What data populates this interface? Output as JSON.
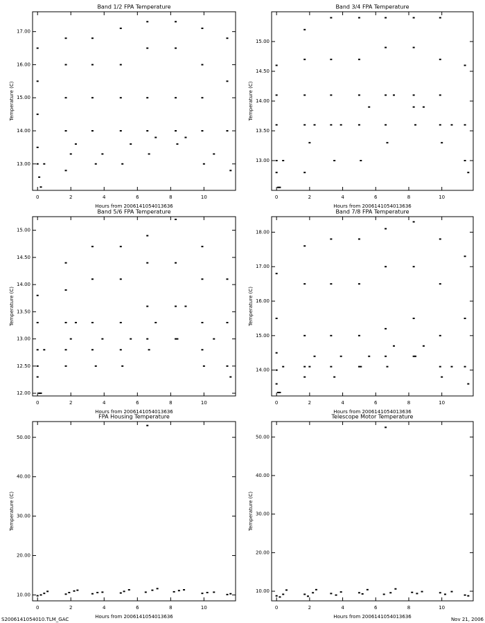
{
  "chart_data": [
    {
      "type": "scatter",
      "title": "Band 1/2 FPA Temperature",
      "xlabel": "Hours from 2006141054013636",
      "ylabel": "Temperature (C)",
      "x": [
        0,
        0,
        0,
        0,
        0,
        0.1,
        0.2,
        0.4,
        1.7,
        1.7,
        1.7,
        1.7,
        1.7,
        2.0,
        2.3,
        3.3,
        3.3,
        3.3,
        3.3,
        3.5,
        3.9,
        5.0,
        5.0,
        5.0,
        5.0,
        5.1,
        5.6,
        6.6,
        6.6,
        6.6,
        6.6,
        6.7,
        7.1,
        8.3,
        8.3,
        8.3,
        8.3,
        8.4,
        8.9,
        9.9,
        9.9,
        9.9,
        9.9,
        10.0,
        10.6,
        11.4,
        11.4,
        11.4,
        11.6
      ],
      "y": [
        16.5,
        15.5,
        14.5,
        13.5,
        13.0,
        12.6,
        12.3,
        13.0,
        16.8,
        16.0,
        15.0,
        14.0,
        12.8,
        13.3,
        13.6,
        16.8,
        16.0,
        15.0,
        14.0,
        13.0,
        13.3,
        17.1,
        16.0,
        15.0,
        14.0,
        13.0,
        13.6,
        17.3,
        16.5,
        15.0,
        14.0,
        13.3,
        13.8,
        17.3,
        16.5,
        15.0,
        14.0,
        13.6,
        13.8,
        17.1,
        16.0,
        15.0,
        14.0,
        13.0,
        13.3,
        16.8,
        15.5,
        14.0,
        12.8
      ],
      "xlim": [
        -0.3,
        11.9
      ],
      "xticks": [
        0,
        2,
        4,
        6,
        8,
        10
      ],
      "ylim": [
        12.2,
        17.6
      ],
      "yticks": [
        {
          "value": 13,
          "label": "13.00"
        },
        {
          "value": 14,
          "label": "14.00"
        },
        {
          "value": 15,
          "label": "15.00"
        },
        {
          "value": 16,
          "label": "16.00"
        },
        {
          "value": 17,
          "label": "17.00"
        }
      ]
    },
    {
      "type": "scatter",
      "title": "Band 3/4 FPA Temperature",
      "xlabel": "Hours from 2006141054013636",
      "ylabel": "Temperature (C)",
      "x": [
        0,
        0,
        0,
        0,
        0,
        0.1,
        0.2,
        0.4,
        1.7,
        1.7,
        1.7,
        1.7,
        1.7,
        2.0,
        2.3,
        3.3,
        3.3,
        3.3,
        3.3,
        3.5,
        3.9,
        5.0,
        5.0,
        5.0,
        5.0,
        5.1,
        5.6,
        6.6,
        6.6,
        6.6,
        6.6,
        6.7,
        7.1,
        8.3,
        8.3,
        8.3,
        8.3,
        8.4,
        8.9,
        9.9,
        9.9,
        9.9,
        9.9,
        10.0,
        10.6,
        11.4,
        11.4,
        11.4,
        11.6
      ],
      "y": [
        14.6,
        14.1,
        13.6,
        13.0,
        12.8,
        12.55,
        12.55,
        13.0,
        15.2,
        14.7,
        14.1,
        13.6,
        12.8,
        13.3,
        13.6,
        15.4,
        14.7,
        14.1,
        13.6,
        13.0,
        13.6,
        15.4,
        14.7,
        14.1,
        13.6,
        13.0,
        13.9,
        15.4,
        14.9,
        14.1,
        13.6,
        13.3,
        14.1,
        15.4,
        14.9,
        14.1,
        13.9,
        13.6,
        13.9,
        15.4,
        14.7,
        14.1,
        13.6,
        13.3,
        13.6,
        14.6,
        13.6,
        13.0,
        12.8
      ],
      "xlim": [
        -0.3,
        11.9
      ],
      "xticks": [
        0,
        2,
        4,
        6,
        8,
        10
      ],
      "ylim": [
        12.5,
        15.5
      ],
      "yticks": [
        {
          "value": 13,
          "label": "13.00"
        },
        {
          "value": 13.5,
          "label": "13.50"
        },
        {
          "value": 14,
          "label": "14.00"
        },
        {
          "value": 14.5,
          "label": "14.50"
        },
        {
          "value": 15,
          "label": "15.00"
        }
      ]
    },
    {
      "type": "scatter",
      "title": "Band 5/6 FPA Temperature",
      "xlabel": "Hours from 2006141054013636",
      "ylabel": "Temperature (C)",
      "x": [
        0,
        0,
        0,
        0,
        0,
        0.1,
        0.2,
        0.4,
        1.7,
        1.7,
        1.7,
        1.7,
        1.7,
        2.0,
        2.3,
        3.3,
        3.3,
        3.3,
        3.3,
        3.5,
        3.9,
        5.0,
        5.0,
        5.0,
        5.0,
        5.1,
        5.6,
        6.6,
        6.6,
        6.6,
        6.6,
        6.7,
        7.1,
        8.3,
        8.3,
        8.3,
        8.3,
        8.4,
        8.9,
        9.9,
        9.9,
        9.9,
        9.9,
        10.0,
        10.6,
        11.4,
        11.4,
        11.4,
        11.6
      ],
      "y": [
        13.8,
        13.3,
        12.8,
        12.5,
        12.3,
        12.0,
        12.0,
        12.8,
        14.4,
        13.9,
        13.3,
        12.8,
        12.5,
        13.0,
        13.3,
        14.7,
        14.1,
        13.3,
        12.8,
        12.5,
        13.0,
        14.7,
        14.1,
        13.3,
        12.8,
        12.5,
        13.0,
        14.9,
        14.4,
        13.6,
        13.0,
        12.8,
        13.3,
        15.2,
        14.4,
        13.6,
        13.0,
        13.0,
        13.6,
        14.7,
        14.1,
        13.3,
        12.8,
        12.5,
        13.0,
        14.1,
        13.3,
        12.5,
        12.3
      ],
      "xlim": [
        -0.3,
        11.9
      ],
      "xticks": [
        0,
        2,
        4,
        6,
        8,
        10
      ],
      "ylim": [
        11.95,
        15.25
      ],
      "yticks": [
        {
          "value": 12,
          "label": "12.00"
        },
        {
          "value": 12.5,
          "label": "12.50"
        },
        {
          "value": 13,
          "label": "13.00"
        },
        {
          "value": 13.5,
          "label": "13.50"
        },
        {
          "value": 14,
          "label": "14.00"
        },
        {
          "value": 14.5,
          "label": "14.50"
        },
        {
          "value": 15,
          "label": "15.00"
        }
      ]
    },
    {
      "type": "scatter",
      "title": "Band 7/8 FPA Temperature",
      "xlabel": "Hours from 2006141054013636",
      "ylabel": "Temperature (C)",
      "x": [
        0,
        0,
        0,
        0,
        0,
        0.1,
        0.2,
        0.4,
        1.7,
        1.7,
        1.7,
        1.7,
        1.7,
        2.0,
        2.3,
        3.3,
        3.3,
        3.3,
        3.3,
        3.5,
        3.9,
        5.0,
        5.0,
        5.0,
        5.0,
        5.1,
        5.6,
        6.6,
        6.6,
        6.6,
        6.6,
        6.7,
        7.1,
        8.3,
        8.3,
        8.3,
        8.3,
        8.4,
        8.9,
        9.9,
        9.9,
        9.9,
        9.9,
        10.0,
        10.6,
        11.4,
        11.4,
        11.4,
        11.6
      ],
      "y": [
        16.8,
        15.5,
        14.5,
        14.0,
        13.6,
        13.35,
        13.35,
        14.1,
        17.6,
        16.5,
        15.0,
        14.1,
        13.8,
        14.1,
        14.4,
        17.8,
        16.5,
        15.0,
        14.1,
        13.8,
        14.4,
        17.8,
        16.5,
        15.0,
        14.1,
        14.1,
        14.4,
        18.1,
        17.0,
        15.2,
        14.4,
        14.1,
        14.7,
        18.3,
        17.0,
        15.5,
        14.4,
        14.4,
        14.7,
        17.8,
        16.5,
        15.0,
        14.1,
        13.8,
        14.1,
        17.3,
        15.5,
        14.1,
        13.6
      ],
      "xlim": [
        -0.3,
        11.9
      ],
      "xticks": [
        0,
        2,
        4,
        6,
        8,
        10
      ],
      "ylim": [
        13.25,
        18.45
      ],
      "yticks": [
        {
          "value": 14,
          "label": "14.00"
        },
        {
          "value": 15,
          "label": "15.00"
        },
        {
          "value": 16,
          "label": "16.00"
        },
        {
          "value": 17,
          "label": "17.00"
        },
        {
          "value": 18,
          "label": "18.00"
        }
      ]
    },
    {
      "type": "scatter",
      "title": "FPA Housing Temperature",
      "xlabel": "Hours from 2006141054013636",
      "ylabel": "Temperature (C)",
      "x": [
        0,
        0.2,
        0.4,
        0.6,
        1.7,
        1.9,
        2.2,
        2.4,
        3.3,
        3.6,
        3.9,
        5.0,
        5.2,
        5.5,
        6.5,
        6.6,
        6.9,
        7.2,
        8.2,
        8.5,
        8.8,
        9.9,
        10.2,
        10.6,
        11.4,
        11.6
      ],
      "y": [
        9.8,
        10.0,
        10.4,
        10.9,
        10.2,
        10.6,
        11.0,
        11.2,
        10.3,
        10.6,
        10.7,
        10.5,
        10.9,
        11.3,
        10.7,
        53,
        11.2,
        11.6,
        10.8,
        11.1,
        11.3,
        10.4,
        10.6,
        10.7,
        10.1,
        10.3
      ],
      "xlim": [
        -0.3,
        11.9
      ],
      "xticks": [
        0,
        2,
        4,
        6,
        8,
        10
      ],
      "ylim": [
        8.5,
        54
      ],
      "yticks": [
        {
          "value": 10,
          "label": "10.00"
        },
        {
          "value": 20,
          "label": "20.00"
        },
        {
          "value": 30,
          "label": "30.00"
        },
        {
          "value": 40,
          "label": "40.00"
        },
        {
          "value": 50,
          "label": "50.00"
        }
      ]
    },
    {
      "type": "scatter",
      "title": "Telescope Motor Temperature",
      "xlabel": "Hours from 2006141054013636",
      "ylabel": "Temperature (C)",
      "x": [
        0,
        0.2,
        0.4,
        0.6,
        1.7,
        1.9,
        2.2,
        2.4,
        3.3,
        3.6,
        3.9,
        5.0,
        5.2,
        5.5,
        6.5,
        6.6,
        6.9,
        7.2,
        8.2,
        8.5,
        8.8,
        9.9,
        10.2,
        10.6,
        11.4,
        11.6
      ],
      "y": [
        8.8,
        8.5,
        9.2,
        10.3,
        9.2,
        8.7,
        9.6,
        10.4,
        9.4,
        9.0,
        9.8,
        9.6,
        9.3,
        10.4,
        9.2,
        52.5,
        9.6,
        10.6,
        9.7,
        9.4,
        9.9,
        9.6,
        9.2,
        9.9,
        9.0,
        8.8
      ],
      "xlim": [
        -0.3,
        11.9
      ],
      "xticks": [
        0,
        2,
        4,
        6,
        8,
        10
      ],
      "ylim": [
        7.5,
        54
      ],
      "yticks": [
        {
          "value": 10,
          "label": "10.00"
        },
        {
          "value": 20,
          "label": "20.00"
        },
        {
          "value": 30,
          "label": "30.00"
        },
        {
          "value": 40,
          "label": "40.00"
        },
        {
          "value": 50,
          "label": "50.00"
        }
      ]
    }
  ],
  "footer": {
    "left": "S2006141054010.TLM_GAC",
    "right": "Nov 21, 2006"
  }
}
